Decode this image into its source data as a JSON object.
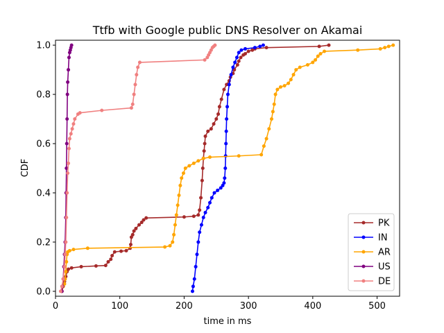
{
  "chart_data": {
    "type": "line",
    "title": "Ttfb with Google public DNS Resolver on Akamai",
    "xlabel": "time in ms",
    "ylabel": "CDF",
    "xlim": [
      0,
      535
    ],
    "ylim": [
      -0.02,
      1.02
    ],
    "xticks": [
      0,
      100,
      200,
      300,
      400,
      500
    ],
    "yticks": [
      0.0,
      0.2,
      0.4,
      0.6,
      0.8,
      1.0
    ],
    "xtick_labels": [
      "0",
      "100",
      "200",
      "300",
      "400",
      "500"
    ],
    "ytick_labels": [
      "0.0",
      "0.2",
      "0.4",
      "0.6",
      "0.8",
      "1.0"
    ],
    "grid": false,
    "legend_position": "lower-right",
    "series": [
      {
        "name": "PK",
        "color": "#a52a2a",
        "points": [
          [
            10,
            0.0
          ],
          [
            12,
            0.02
          ],
          [
            14,
            0.04
          ],
          [
            16,
            0.06
          ],
          [
            18,
            0.08
          ],
          [
            20,
            0.09
          ],
          [
            25,
            0.095
          ],
          [
            40,
            0.1
          ],
          [
            63,
            0.103
          ],
          [
            78,
            0.105
          ],
          [
            82,
            0.12
          ],
          [
            86,
            0.13
          ],
          [
            88,
            0.145
          ],
          [
            92,
            0.16
          ],
          [
            102,
            0.163
          ],
          [
            110,
            0.165
          ],
          [
            116,
            0.175
          ],
          [
            117,
            0.19
          ],
          [
            118,
            0.22
          ],
          [
            120,
            0.23
          ],
          [
            122,
            0.245
          ],
          [
            125,
            0.255
          ],
          [
            130,
            0.27
          ],
          [
            134,
            0.28
          ],
          [
            137,
            0.29
          ],
          [
            141,
            0.298
          ],
          [
            200,
            0.302
          ],
          [
            215,
            0.305
          ],
          [
            222,
            0.31
          ],
          [
            224,
            0.33
          ],
          [
            226,
            0.38
          ],
          [
            228,
            0.45
          ],
          [
            229,
            0.5
          ],
          [
            230,
            0.54
          ],
          [
            231,
            0.57
          ],
          [
            232,
            0.6
          ],
          [
            233,
            0.63
          ],
          [
            237,
            0.65
          ],
          [
            242,
            0.66
          ],
          [
            246,
            0.68
          ],
          [
            250,
            0.7
          ],
          [
            253,
            0.72
          ],
          [
            255,
            0.75
          ],
          [
            258,
            0.78
          ],
          [
            262,
            0.82
          ],
          [
            266,
            0.84
          ],
          [
            270,
            0.855
          ],
          [
            272,
            0.87
          ],
          [
            276,
            0.885
          ],
          [
            278,
            0.9
          ],
          [
            283,
            0.92
          ],
          [
            285,
            0.935
          ],
          [
            288,
            0.95
          ],
          [
            292,
            0.96
          ],
          [
            295,
            0.965
          ],
          [
            300,
            0.975
          ],
          [
            306,
            0.98
          ],
          [
            310,
            0.985
          ],
          [
            328,
            0.99
          ],
          [
            410,
            0.995
          ],
          [
            425,
            1.0
          ]
        ]
      },
      {
        "name": "IN",
        "color": "#0000ff",
        "points": [
          [
            213,
            0.0
          ],
          [
            214,
            0.02
          ],
          [
            216,
            0.05
          ],
          [
            218,
            0.1
          ],
          [
            220,
            0.15
          ],
          [
            222,
            0.2
          ],
          [
            224,
            0.24
          ],
          [
            227,
            0.27
          ],
          [
            230,
            0.3
          ],
          [
            233,
            0.32
          ],
          [
            237,
            0.34
          ],
          [
            240,
            0.36
          ],
          [
            243,
            0.38
          ],
          [
            247,
            0.4
          ],
          [
            252,
            0.41
          ],
          [
            257,
            0.42
          ],
          [
            260,
            0.43
          ],
          [
            262,
            0.44
          ],
          [
            263,
            0.46
          ],
          [
            264,
            0.5
          ],
          [
            264.5,
            0.55
          ],
          [
            265,
            0.6
          ],
          [
            265.5,
            0.65
          ],
          [
            266,
            0.7
          ],
          [
            267,
            0.75
          ],
          [
            268,
            0.8
          ],
          [
            270,
            0.84
          ],
          [
            273,
            0.88
          ],
          [
            276,
            0.91
          ],
          [
            279,
            0.93
          ],
          [
            282,
            0.95
          ],
          [
            285,
            0.97
          ],
          [
            289,
            0.98
          ],
          [
            295,
            0.985
          ],
          [
            310,
            0.99
          ],
          [
            318,
            0.995
          ],
          [
            323,
            1.0
          ]
        ]
      },
      {
        "name": "AR",
        "color": "#ffa500",
        "points": [
          [
            10,
            0.0
          ],
          [
            12,
            0.02
          ],
          [
            14,
            0.03
          ],
          [
            15,
            0.05
          ],
          [
            16,
            0.08
          ],
          [
            17,
            0.12
          ],
          [
            18,
            0.15
          ],
          [
            19,
            0.16
          ],
          [
            22,
            0.165
          ],
          [
            28,
            0.17
          ],
          [
            50,
            0.175
          ],
          [
            170,
            0.18
          ],
          [
            178,
            0.185
          ],
          [
            182,
            0.2
          ],
          [
            184,
            0.23
          ],
          [
            186,
            0.27
          ],
          [
            188,
            0.31
          ],
          [
            190,
            0.35
          ],
          [
            192,
            0.39
          ],
          [
            194,
            0.43
          ],
          [
            196,
            0.46
          ],
          [
            199,
            0.48
          ],
          [
            202,
            0.5
          ],
          [
            208,
            0.51
          ],
          [
            215,
            0.52
          ],
          [
            222,
            0.53
          ],
          [
            230,
            0.54
          ],
          [
            240,
            0.545
          ],
          [
            285,
            0.55
          ],
          [
            320,
            0.555
          ],
          [
            324,
            0.59
          ],
          [
            328,
            0.62
          ],
          [
            332,
            0.66
          ],
          [
            336,
            0.7
          ],
          [
            338,
            0.73
          ],
          [
            340,
            0.76
          ],
          [
            342,
            0.8
          ],
          [
            345,
            0.82
          ],
          [
            350,
            0.83
          ],
          [
            356,
            0.835
          ],
          [
            362,
            0.845
          ],
          [
            366,
            0.86
          ],
          [
            370,
            0.88
          ],
          [
            374,
            0.9
          ],
          [
            380,
            0.91
          ],
          [
            392,
            0.92
          ],
          [
            400,
            0.93
          ],
          [
            404,
            0.94
          ],
          [
            408,
            0.955
          ],
          [
            412,
            0.965
          ],
          [
            418,
            0.975
          ],
          [
            470,
            0.98
          ],
          [
            505,
            0.985
          ],
          [
            512,
            0.99
          ],
          [
            518,
            0.995
          ],
          [
            525,
            1.0
          ]
        ]
      },
      {
        "name": "US",
        "color": "#800080",
        "points": [
          [
            10,
            0.0
          ],
          [
            11,
            0.02
          ],
          [
            12,
            0.05
          ],
          [
            13,
            0.1
          ],
          [
            14,
            0.15
          ],
          [
            15,
            0.2
          ],
          [
            16,
            0.3
          ],
          [
            16.5,
            0.4
          ],
          [
            17,
            0.5
          ],
          [
            17.5,
            0.6
          ],
          [
            18,
            0.7
          ],
          [
            18.5,
            0.8
          ],
          [
            19,
            0.85
          ],
          [
            20,
            0.9
          ],
          [
            21,
            0.95
          ],
          [
            22,
            0.97
          ],
          [
            23,
            0.98
          ],
          [
            24,
            0.99
          ],
          [
            25,
            1.0
          ]
        ]
      },
      {
        "name": "DE",
        "color": "#f08080",
        "points": [
          [
            8,
            0.0
          ],
          [
            10,
            0.02
          ],
          [
            12,
            0.05
          ],
          [
            14,
            0.1
          ],
          [
            15,
            0.15
          ],
          [
            16,
            0.2
          ],
          [
            17,
            0.3
          ],
          [
            18,
            0.4
          ],
          [
            19,
            0.48
          ],
          [
            20,
            0.52
          ],
          [
            21,
            0.58
          ],
          [
            22,
            0.62
          ],
          [
            24,
            0.64
          ],
          [
            26,
            0.66
          ],
          [
            28,
            0.68
          ],
          [
            30,
            0.7
          ],
          [
            35,
            0.72
          ],
          [
            38,
            0.725
          ],
          [
            72,
            0.735
          ],
          [
            118,
            0.745
          ],
          [
            120,
            0.76
          ],
          [
            122,
            0.8
          ],
          [
            124,
            0.84
          ],
          [
            126,
            0.88
          ],
          [
            128,
            0.91
          ],
          [
            131,
            0.93
          ],
          [
            232,
            0.94
          ],
          [
            236,
            0.95
          ],
          [
            238,
            0.96
          ],
          [
            240,
            0.97
          ],
          [
            242,
            0.98
          ],
          [
            244,
            0.99
          ],
          [
            246,
            0.995
          ],
          [
            248,
            1.0
          ]
        ]
      }
    ]
  }
}
